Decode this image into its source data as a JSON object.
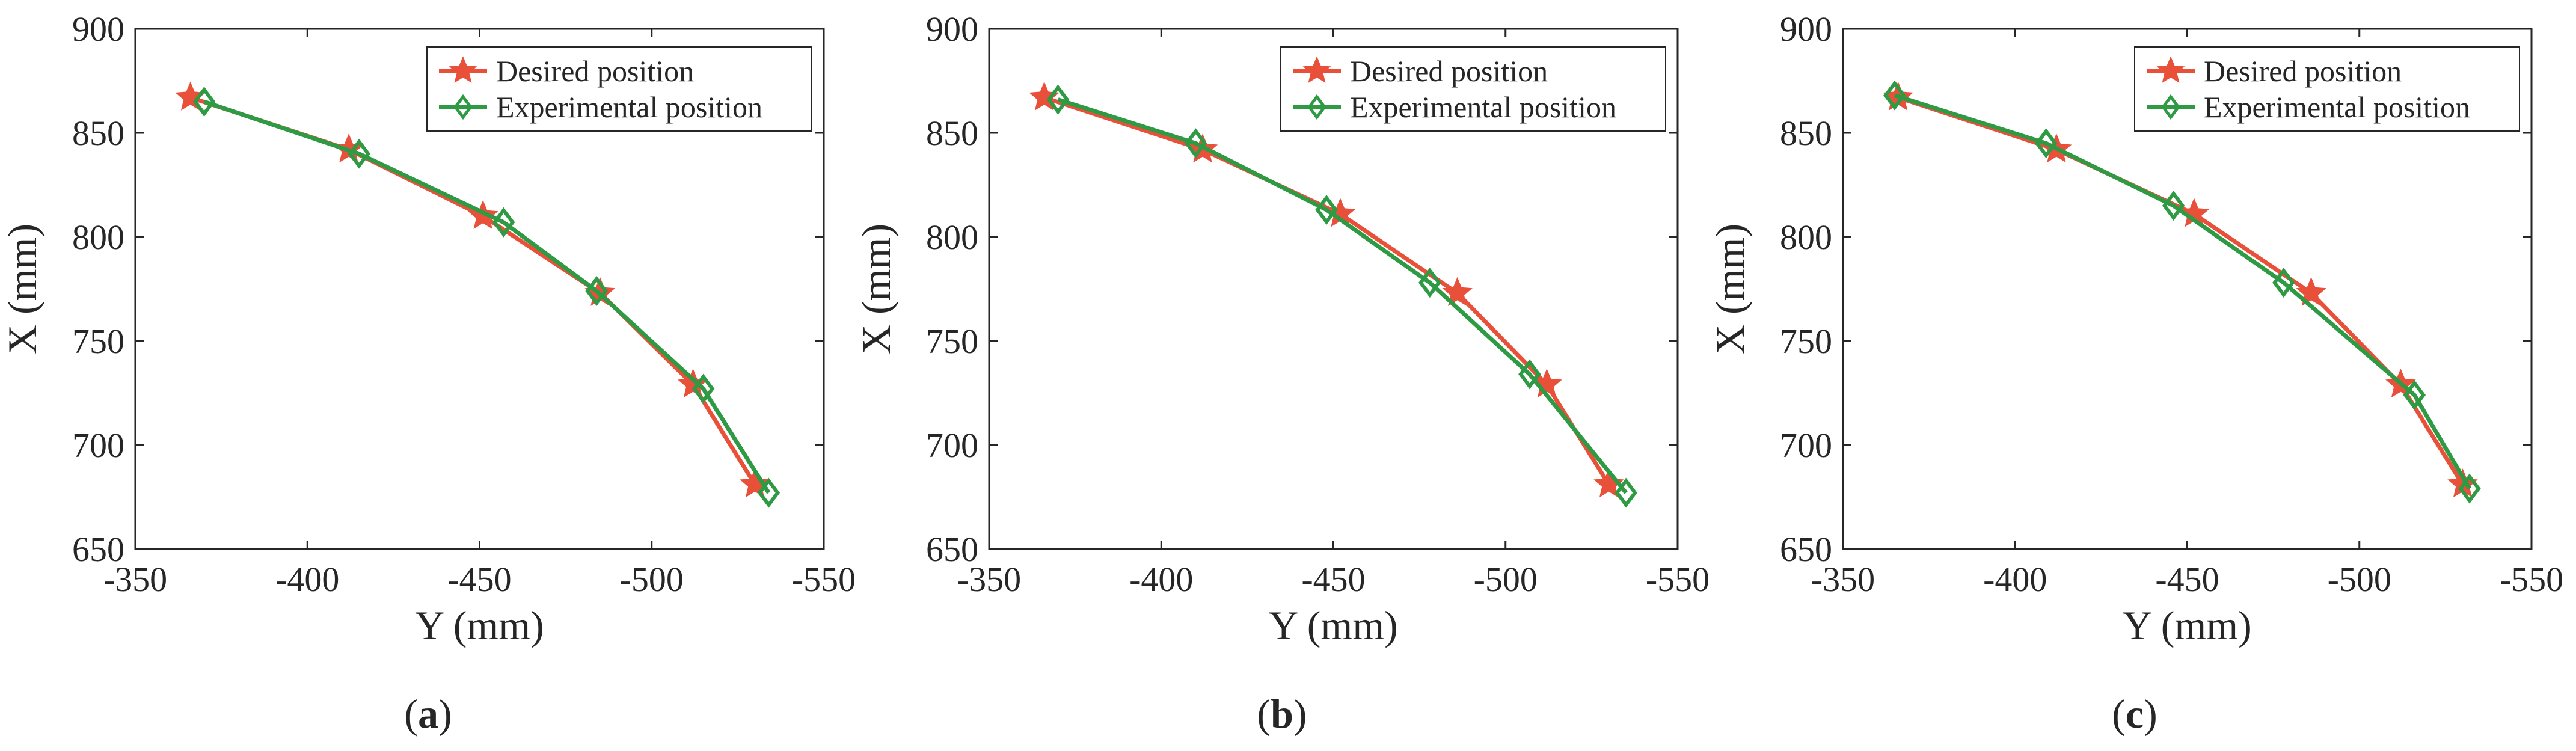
{
  "colors": {
    "desired": "#E8503A",
    "experimental": "#2E9A44",
    "axis": "#262626"
  },
  "chart_data": [
    {
      "type": "line",
      "caption": {
        "open": "(",
        "letter": "a",
        "close": ")"
      },
      "xlabel": "Y (mm)",
      "ylabel": "X (mm)",
      "xlim": [
        -350,
        -550
      ],
      "ylim": [
        650,
        900
      ],
      "xticks": [
        "-350",
        "-400",
        "-450",
        "-500",
        "-550"
      ],
      "yticks": [
        "650",
        "700",
        "750",
        "800",
        "850",
        "900"
      ],
      "legend_position": "top-right",
      "series": [
        {
          "name": "Desired position",
          "marker": "star",
          "x": [
            -366,
            -412,
            -451,
            -485,
            -512,
            -530
          ],
          "y": [
            867,
            842,
            810,
            773,
            729,
            681
          ]
        },
        {
          "name": "Experimental position",
          "marker": "diamond",
          "x": [
            -370,
            -415,
            -457,
            -484,
            -515,
            -534
          ],
          "y": [
            865,
            840,
            807,
            774,
            727,
            677
          ]
        }
      ]
    },
    {
      "type": "line",
      "caption": {
        "open": "(",
        "letter": "b",
        "close": ")"
      },
      "xlabel": "Y (mm)",
      "ylabel": "X (mm)",
      "xlim": [
        -350,
        -550
      ],
      "ylim": [
        650,
        900
      ],
      "xticks": [
        "-350",
        "-400",
        "-450",
        "-500",
        "-550"
      ],
      "yticks": [
        "650",
        "700",
        "750",
        "800",
        "850",
        "900"
      ],
      "legend_position": "top-right",
      "series": [
        {
          "name": "Desired position",
          "marker": "star",
          "x": [
            -366,
            -412,
            -452,
            -486,
            -512,
            -530
          ],
          "y": [
            867,
            842,
            811,
            773,
            729,
            681
          ]
        },
        {
          "name": "Experimental position",
          "marker": "diamond",
          "x": [
            -370,
            -410,
            -448,
            -478,
            -507,
            -535
          ],
          "y": [
            866,
            845,
            813,
            778,
            734,
            677
          ]
        }
      ]
    },
    {
      "type": "line",
      "caption": {
        "open": "(",
        "letter": "c",
        "close": ")"
      },
      "xlabel": "Y (mm)",
      "ylabel": "X (mm)",
      "xlim": [
        -350,
        -550
      ],
      "ylim": [
        650,
        900
      ],
      "xticks": [
        "-350",
        "-400",
        "-450",
        "-500",
        "-550"
      ],
      "yticks": [
        "650",
        "700",
        "750",
        "800",
        "850",
        "900"
      ],
      "legend_position": "top-right",
      "series": [
        {
          "name": "Desired position",
          "marker": "star",
          "x": [
            -366,
            -412,
            -452,
            -486,
            -512,
            -530
          ],
          "y": [
            867,
            842,
            811,
            773,
            729,
            681
          ]
        },
        {
          "name": "Experimental position",
          "marker": "diamond",
          "x": [
            -365,
            -409,
            -446,
            -478,
            -516,
            -532
          ],
          "y": [
            868,
            845,
            815,
            778,
            724,
            679
          ]
        }
      ]
    }
  ]
}
